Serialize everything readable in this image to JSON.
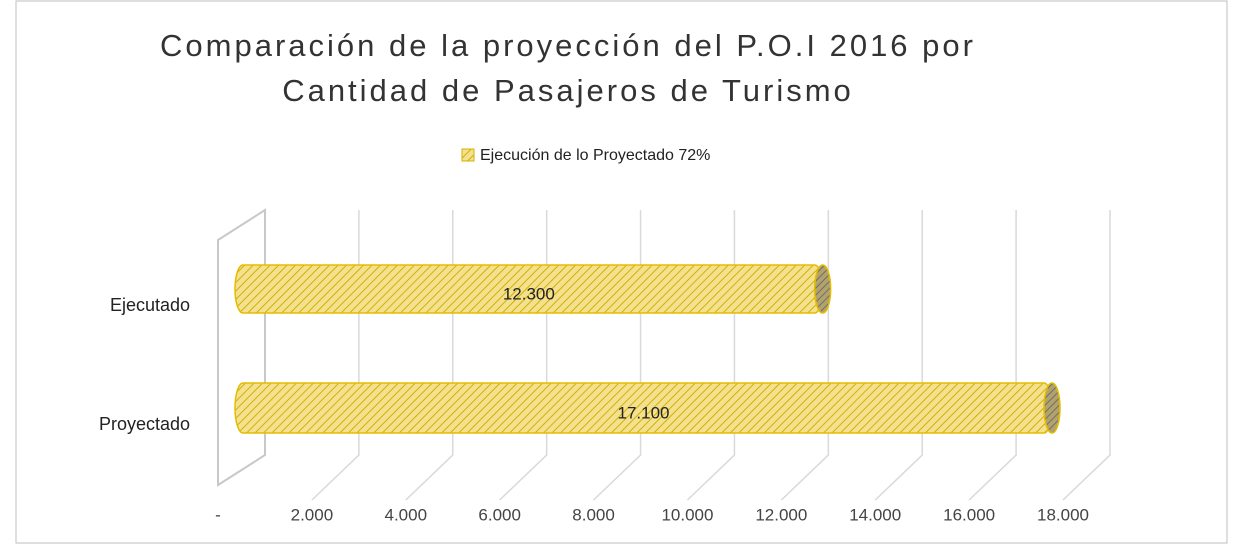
{
  "chart_data": {
    "type": "bar",
    "orientation": "horizontal",
    "title": [
      "Comparación de la proyección del P.O.I 2016 por",
      "Cantidad de Pasajeros de Turismo"
    ],
    "categories": [
      "Ejecutado",
      "Proyectado"
    ],
    "series": [
      {
        "name": "Ejecución de lo Proyectado 72%",
        "color": "#f0d96a",
        "values": [
          12300,
          17100
        ],
        "value_labels": [
          "12.300",
          "17.100"
        ]
      }
    ],
    "xlim": [
      0,
      18000
    ],
    "xticks": [
      {
        "value": 0,
        "label": "-"
      },
      {
        "value": 2000,
        "label": "2.000"
      },
      {
        "value": 4000,
        "label": "4.000"
      },
      {
        "value": 6000,
        "label": "6.000"
      },
      {
        "value": 8000,
        "label": "8.000"
      },
      {
        "value": 10000,
        "label": "10.000"
      },
      {
        "value": 12000,
        "label": "12.000"
      },
      {
        "value": 14000,
        "label": "14.000"
      },
      {
        "value": 16000,
        "label": "16.000"
      },
      {
        "value": 18000,
        "label": "18.000"
      }
    ],
    "grid": true,
    "legend": "top"
  }
}
